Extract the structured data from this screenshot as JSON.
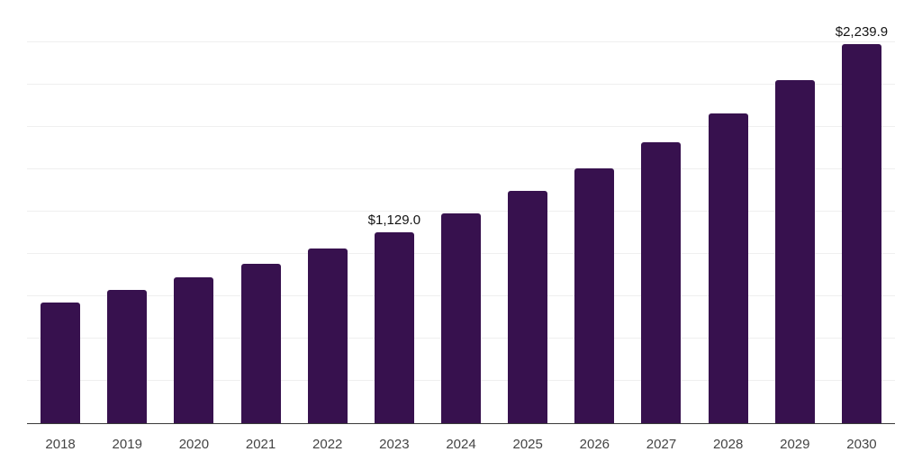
{
  "chart_data": {
    "type": "bar",
    "title": "",
    "xlabel": "",
    "ylabel": "",
    "categories": [
      "2018",
      "2019",
      "2020",
      "2021",
      "2022",
      "2023",
      "2024",
      "2025",
      "2026",
      "2027",
      "2028",
      "2029",
      "2030"
    ],
    "values": [
      715,
      785,
      860,
      940,
      1030,
      1129.0,
      1240,
      1370,
      1505,
      1660,
      1830,
      2025,
      2239.9
    ],
    "value_labels": [
      "",
      "",
      "",
      "",
      "",
      "$1,129.0",
      "",
      "",
      "",
      "",
      "",
      "",
      "$2,239.9"
    ],
    "y_axis": {
      "min": 0,
      "max": 2500,
      "tick_interval": 250,
      "labels_visible": false
    },
    "grid": true,
    "legend": "none",
    "colors": {
      "bar": "#37114E",
      "gridline": "#efefef",
      "axis_line": "#3a3a3a",
      "value_label": "#141414",
      "tick_label": "#444444",
      "background": "#ffffff"
    }
  }
}
